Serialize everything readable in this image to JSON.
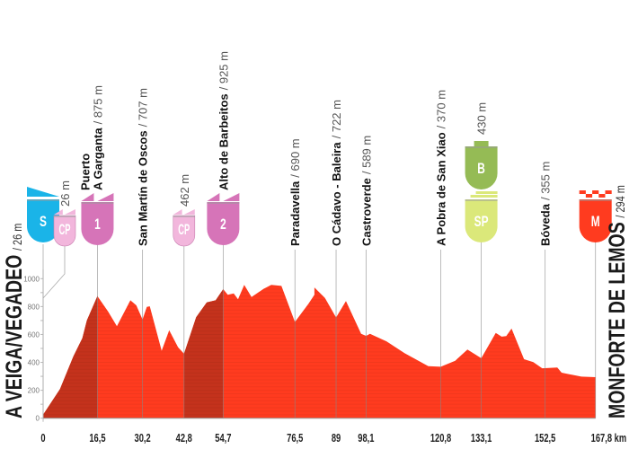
{
  "chart_data": {
    "type": "area",
    "title": "",
    "xlabel": "",
    "ylabel": "",
    "x_unit": "km",
    "xlim": [
      0,
      167.8
    ],
    "ylim": [
      0,
      1000
    ],
    "y_ticks": [
      "0",
      "200",
      "400",
      "600",
      "800",
      "1000"
    ],
    "grid": false,
    "start": {
      "name": "A VEIGA/VEGADEO",
      "elev": "/ 26 m"
    },
    "finish": {
      "name": "MONFORTE DE LEMOS",
      "elev": "/ 294 m"
    },
    "km_ticks": [
      "0",
      "16,5",
      "30,2",
      "42,8",
      "54,7",
      "76,5",
      "89",
      "98,1",
      "120,8",
      "133,1",
      "152,5",
      "167,8 km"
    ],
    "km_values": [
      0,
      16.5,
      30.2,
      42.8,
      54.7,
      76.5,
      89,
      98.1,
      120.8,
      133.1,
      152.5,
      167.8
    ],
    "climb_segments": [
      [
        0,
        16.5
      ],
      [
        42.8,
        54.7
      ]
    ],
    "colors": {
      "profile": "#ff3b1f",
      "climb": "#c4321c",
      "start_badge": "#1ab4e8",
      "mountain_badge": "#d674b8",
      "cp_badge": "#f2b6dc",
      "bonus_badge": "#95bb55",
      "sprint_badge": "#dbe87a",
      "finish_badge": "#ff3b1f"
    },
    "waypoints": [
      {
        "km": 0,
        "badge": "S",
        "name": "",
        "elev": ""
      },
      {
        "km": 0,
        "badge": "CP",
        "name": "",
        "elev": "26 m"
      },
      {
        "km": 16.5,
        "badge": "1",
        "name": "Puerto",
        "name2": "A Garganta",
        "elev": "/ 875 m"
      },
      {
        "km": 30.2,
        "badge": "",
        "name": "San Martín de Oscos",
        "elev": "/ 707 m"
      },
      {
        "km": 42.8,
        "badge": "CP",
        "name": "",
        "elev": "462 m"
      },
      {
        "km": 54.7,
        "badge": "2",
        "name": "Alto de Barbeitos",
        "elev": "/ 925 m"
      },
      {
        "km": 76.5,
        "badge": "",
        "name": "Paradavella",
        "elev": "/ 690 m"
      },
      {
        "km": 89,
        "badge": "",
        "name": "O Cádavo - Baleira",
        "elev": "/ 722 m"
      },
      {
        "km": 98.1,
        "badge": "",
        "name": "Castroverde",
        "elev": "/ 589 m"
      },
      {
        "km": 120.8,
        "badge": "",
        "name": "A Pobra de San Xiao",
        "elev": "/ 370 m"
      },
      {
        "km": 133.1,
        "badge": "SP",
        "badge2": "B",
        "name": "",
        "elev": "430 m"
      },
      {
        "km": 152.5,
        "badge": "",
        "name": "Bóveda",
        "elev": "/ 355 m"
      },
      {
        "km": 167.8,
        "badge": "M",
        "name": "",
        "elev": ""
      }
    ],
    "profile": [
      [
        0,
        26
      ],
      [
        5.1,
        208
      ],
      [
        9.2,
        444
      ],
      [
        11.9,
        573
      ],
      [
        13.3,
        701
      ],
      [
        16.5,
        875
      ],
      [
        19.7,
        766
      ],
      [
        22.4,
        659
      ],
      [
        26.5,
        845
      ],
      [
        28.3,
        809
      ],
      [
        30.2,
        707
      ],
      [
        31.5,
        798
      ],
      [
        32.4,
        802
      ],
      [
        36.0,
        483
      ],
      [
        38.3,
        630
      ],
      [
        41.0,
        508
      ],
      [
        42.8,
        462
      ],
      [
        46.5,
        723
      ],
      [
        49.7,
        830
      ],
      [
        52.4,
        845
      ],
      [
        54.7,
        925
      ],
      [
        56.1,
        884
      ],
      [
        57.9,
        894
      ],
      [
        59.2,
        852
      ],
      [
        61.1,
        955
      ],
      [
        63.3,
        869
      ],
      [
        67.0,
        927
      ],
      [
        69.3,
        955
      ],
      [
        72.4,
        948
      ],
      [
        76.5,
        690
      ],
      [
        80.6,
        820
      ],
      [
        82.4,
        884
      ],
      [
        82.4,
        937
      ],
      [
        85.6,
        862
      ],
      [
        89,
        722
      ],
      [
        92.0,
        839
      ],
      [
        96.6,
        605
      ],
      [
        98.1,
        590
      ],
      [
        99.3,
        605
      ],
      [
        104.3,
        551
      ],
      [
        109.8,
        466
      ],
      [
        117.0,
        373
      ],
      [
        120.8,
        369
      ],
      [
        125.2,
        412
      ],
      [
        128.9,
        492
      ],
      [
        133.1,
        430
      ],
      [
        137.5,
        611
      ],
      [
        139.3,
        584
      ],
      [
        140.7,
        588
      ],
      [
        142.3,
        642
      ],
      [
        146.1,
        423
      ],
      [
        148.9,
        402
      ],
      [
        151.6,
        358
      ],
      [
        156.2,
        363
      ],
      [
        157.5,
        326
      ],
      [
        163.5,
        298
      ],
      [
        167.8,
        294
      ]
    ]
  }
}
